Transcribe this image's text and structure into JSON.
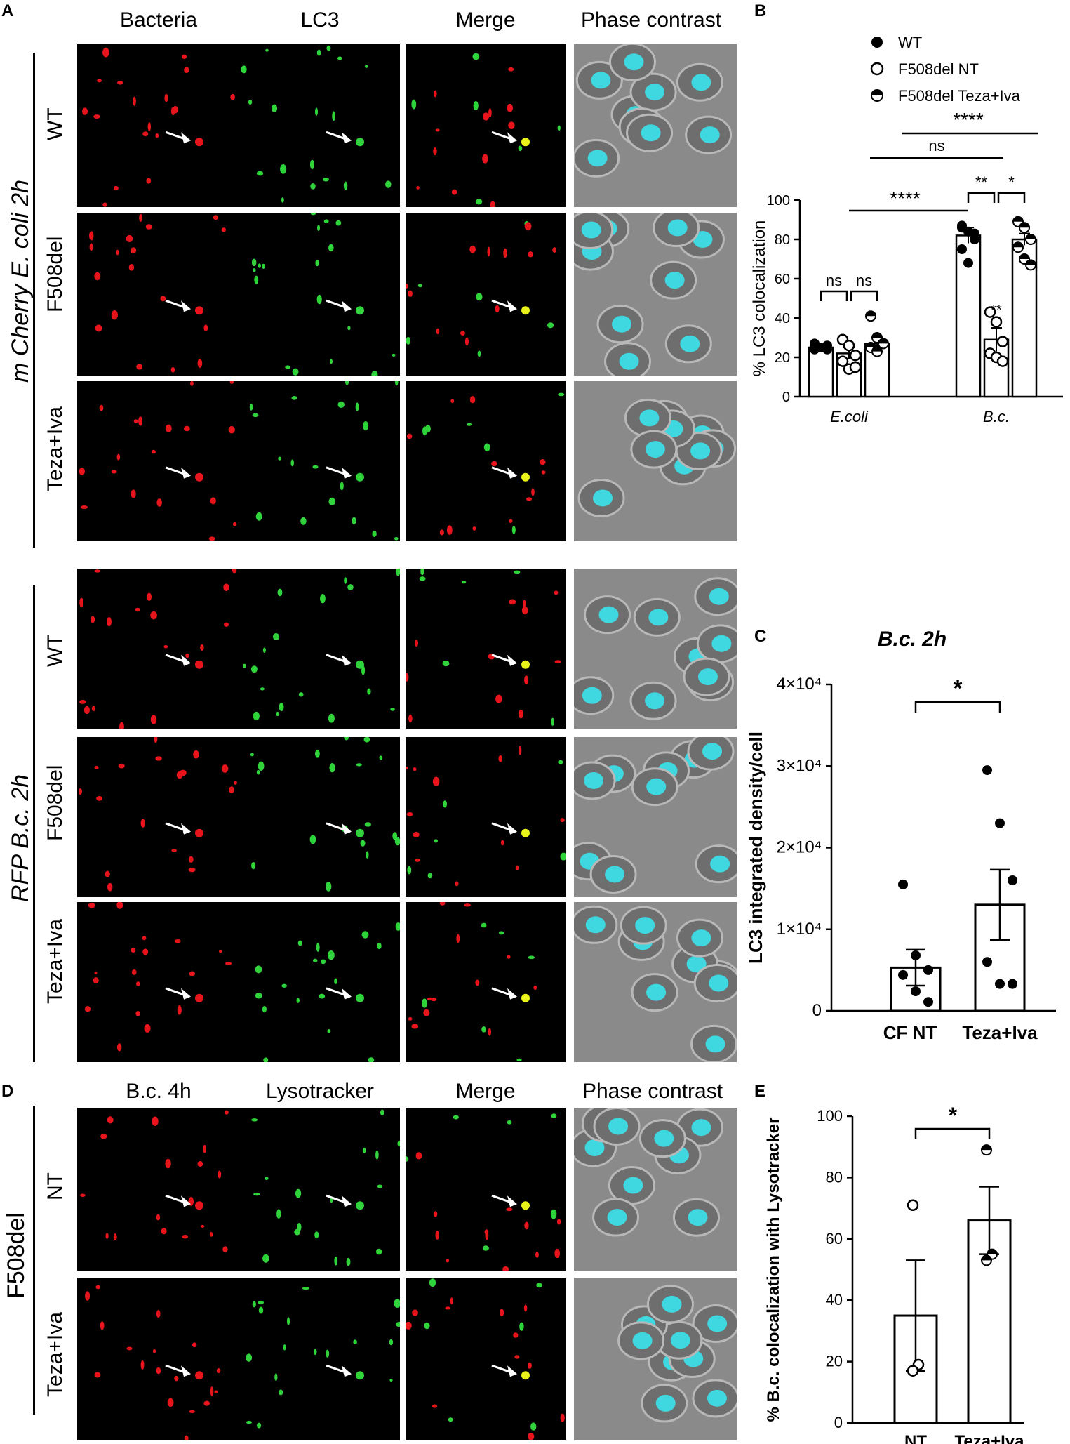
{
  "panels": {
    "A": {
      "label": "A",
      "columns": [
        "Bacteria",
        "LC3",
        "Merge",
        "Phase contrast"
      ],
      "group1": "m Cherry E. coli 2h",
      "group2": "RFP B.c. 2h",
      "rows": [
        "WT",
        "F508del",
        "Teza+Iva"
      ]
    },
    "B": {
      "label": "B"
    },
    "C": {
      "label": "C"
    },
    "D": {
      "label": "D",
      "columns": [
        "B.c. 4h",
        "Lysotracker",
        "Merge",
        "Phase contrast"
      ],
      "group": "F508del",
      "rows": [
        "NT",
        "Teza+Iva"
      ]
    },
    "E": {
      "label": "E"
    }
  },
  "colors": {
    "bacteria": "#e8141c",
    "lc3": "#2fd43a",
    "merge": "#e9f21a",
    "nucleus": "#3fd8e0",
    "phase": "#8a8a8a"
  },
  "chart_data": [
    {
      "id": "B",
      "type": "bar",
      "ylabel": "% LC3 colocalization",
      "ylim": [
        0,
        100
      ],
      "yticks": [
        "0",
        "20",
        "40",
        "60",
        "80",
        "100"
      ],
      "groups": [
        "E.coli",
        "B.c."
      ],
      "series": [
        {
          "name": "WT",
          "marker": "filled",
          "values": [
            25,
            82
          ],
          "points": [
            [
              26,
              25,
              24,
              27,
              25,
              26,
              24
            ],
            [
              87,
              84,
              80,
              75,
              68,
              83,
              86
            ]
          ]
        },
        {
          "name": "F508del NT",
          "marker": "open",
          "values": [
            22,
            29
          ],
          "points": [
            [
              29,
              26,
              21,
              18,
              14,
              15
            ],
            [
              43,
              38,
              28,
              22,
              20,
              18
            ]
          ]
        },
        {
          "name": "F508del Teza+Iva",
          "marker": "half",
          "values": [
            27,
            80
          ],
          "points": [
            [
              41,
              30,
              27,
              25,
              23
            ],
            [
              89,
              86,
              80,
              76,
              70,
              67
            ]
          ]
        }
      ],
      "errors": [
        [
          1,
          3,
          3
        ],
        [
          4,
          6,
          3
        ]
      ],
      "annotations": [
        "ns",
        "ns",
        "****",
        "**",
        "*",
        "ns",
        "****",
        "**"
      ]
    },
    {
      "id": "C",
      "type": "bar",
      "title": "B.c. 2h",
      "ylabel": "LC3 integrated density/cell",
      "ylim": [
        0,
        40000
      ],
      "yticks": [
        "0",
        "1×10⁴",
        "2×10⁴",
        "3×10⁴",
        "4×10⁴"
      ],
      "categories": [
        "CF NT",
        "Teza+Iva"
      ],
      "values": [
        5300,
        13000
      ],
      "errors": [
        2200,
        4300
      ],
      "points": [
        [
          15500,
          6800,
          5000,
          4400,
          2400,
          1100
        ],
        [
          29500,
          23000,
          16000,
          6000,
          3300,
          3300
        ]
      ],
      "annotation": "*"
    },
    {
      "id": "E",
      "type": "bar",
      "ylabel": "% B.c. colocalization with Lysotracker",
      "ylim": [
        0,
        100
      ],
      "yticks": [
        "0",
        "20",
        "40",
        "60",
        "80",
        "100"
      ],
      "categories": [
        "NT",
        "Teza+Iva"
      ],
      "values": [
        35,
        66
      ],
      "errors": [
        18,
        11
      ],
      "points": [
        [
          71,
          19,
          17
        ],
        [
          89,
          55,
          53
        ]
      ],
      "annotation": "*"
    }
  ]
}
